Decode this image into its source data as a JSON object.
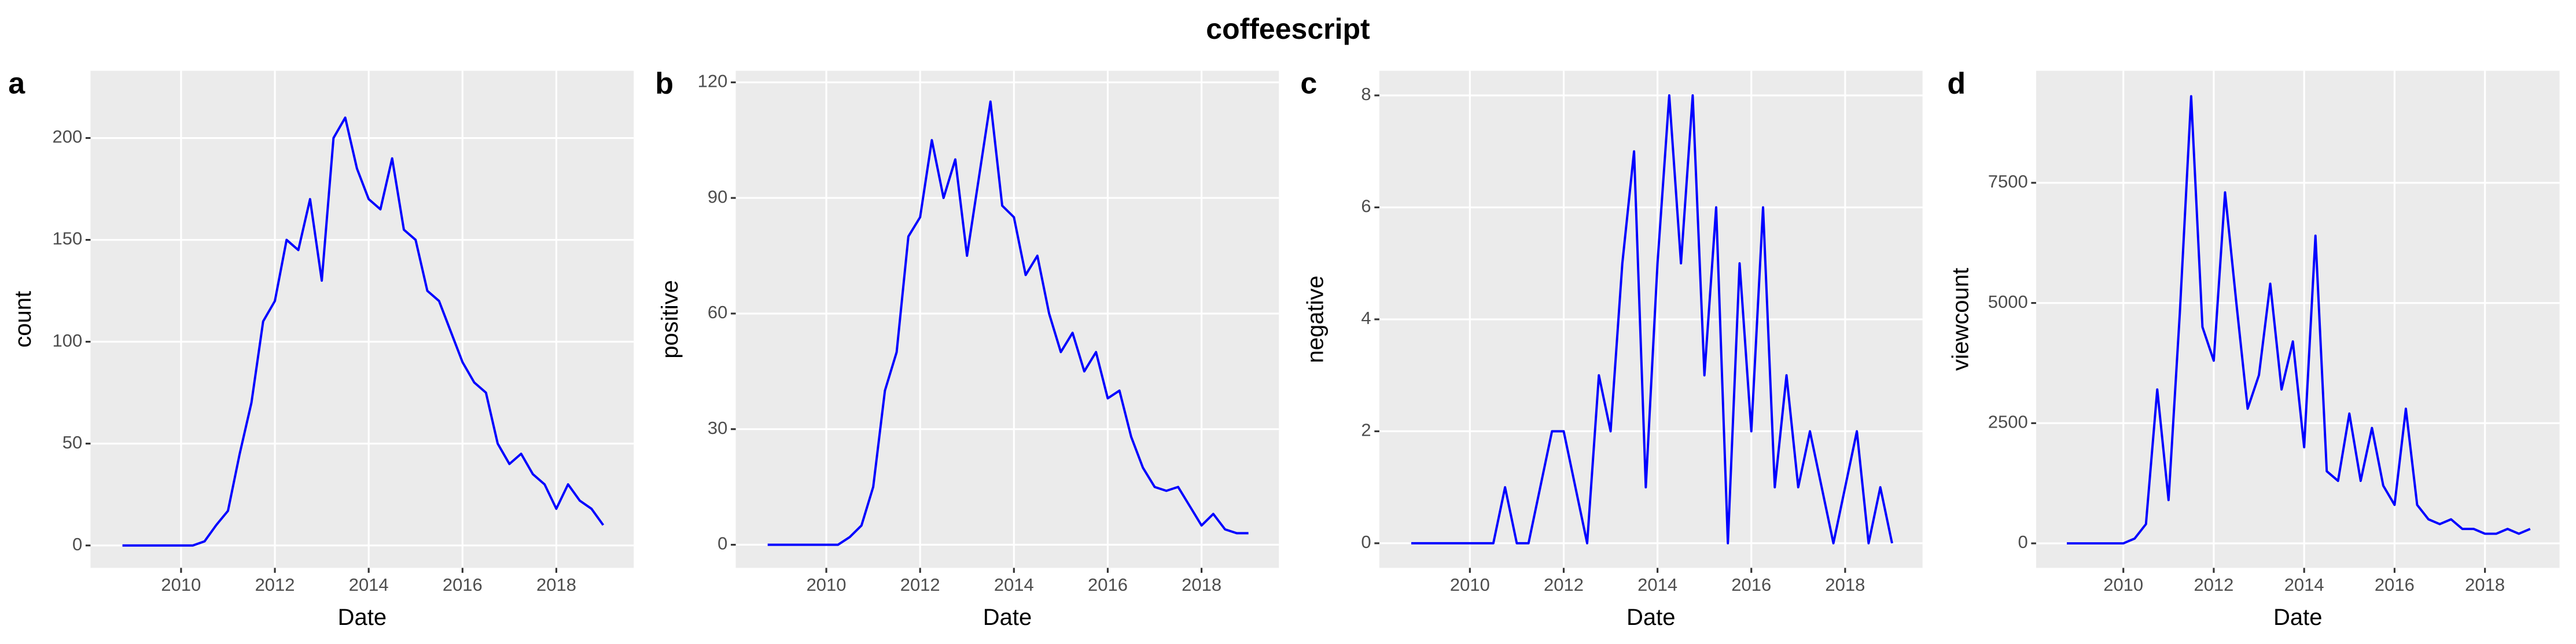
{
  "title": "coffeescript",
  "chart_data": [
    {
      "type": "line",
      "tag": "a",
      "x_label": "Date",
      "y_label": "count",
      "grid": true,
      "x": [
        2008.75,
        2009,
        2009.25,
        2009.5,
        2009.75,
        2010,
        2010.25,
        2010.5,
        2010.75,
        2011,
        2011.25,
        2011.5,
        2011.75,
        2012,
        2012.25,
        2012.5,
        2012.75,
        2013,
        2013.25,
        2013.5,
        2013.75,
        2014,
        2014.25,
        2014.5,
        2014.75,
        2015,
        2015.25,
        2015.5,
        2015.75,
        2016,
        2016.25,
        2016.5,
        2016.75,
        2017,
        2017.25,
        2017.5,
        2017.75,
        2018,
        2018.25,
        2018.5,
        2018.75,
        2019
      ],
      "series": [
        {
          "color": "#0000ff",
          "values": [
            0,
            0,
            0,
            0,
            0,
            0,
            0,
            2,
            10,
            17,
            45,
            70,
            110,
            120,
            150,
            145,
            170,
            130,
            200,
            210,
            185,
            170,
            165,
            190,
            155,
            150,
            125,
            120,
            105,
            90,
            80,
            75,
            50,
            40,
            45,
            35,
            30,
            18,
            30,
            22,
            18,
            10
          ]
        }
      ],
      "xlim": [
        2008.07,
        2019.65
      ],
      "xticks": [
        2010,
        2012,
        2014,
        2016,
        2018
      ],
      "ylim": [
        -11,
        233
      ],
      "yticks": [
        0,
        50,
        100,
        150,
        200
      ]
    },
    {
      "type": "line",
      "tag": "b",
      "x_label": "Date",
      "y_label": "positive",
      "grid": true,
      "x": [
        2008.75,
        2009,
        2009.25,
        2009.5,
        2009.75,
        2010,
        2010.25,
        2010.5,
        2010.75,
        2011,
        2011.25,
        2011.5,
        2011.75,
        2012,
        2012.25,
        2012.5,
        2012.75,
        2013,
        2013.25,
        2013.5,
        2013.75,
        2014,
        2014.25,
        2014.5,
        2014.75,
        2015,
        2015.25,
        2015.5,
        2015.75,
        2016,
        2016.25,
        2016.5,
        2016.75,
        2017,
        2017.25,
        2017.5,
        2017.75,
        2018,
        2018.25,
        2018.5,
        2018.75,
        2019
      ],
      "series": [
        {
          "color": "#0000ff",
          "values": [
            0,
            0,
            0,
            0,
            0,
            0,
            0,
            2,
            5,
            15,
            40,
            50,
            80,
            85,
            105,
            90,
            100,
            75,
            95,
            115,
            88,
            85,
            70,
            75,
            60,
            50,
            55,
            45,
            50,
            38,
            40,
            28,
            20,
            15,
            14,
            15,
            10,
            5,
            8,
            4,
            3,
            3
          ]
        }
      ],
      "xlim": [
        2008.07,
        2019.65
      ],
      "xticks": [
        2010,
        2012,
        2014,
        2016,
        2018
      ],
      "ylim": [
        -6,
        123
      ],
      "yticks": [
        0,
        30,
        60,
        90,
        120
      ]
    },
    {
      "type": "line",
      "tag": "c",
      "x_label": "Date",
      "y_label": "negative",
      "grid": true,
      "x": [
        2008.75,
        2009,
        2009.25,
        2009.5,
        2009.75,
        2010,
        2010.25,
        2010.5,
        2010.75,
        2011,
        2011.25,
        2011.5,
        2011.75,
        2012,
        2012.25,
        2012.5,
        2012.75,
        2013,
        2013.25,
        2013.5,
        2013.75,
        2014,
        2014.25,
        2014.5,
        2014.75,
        2015,
        2015.25,
        2015.5,
        2015.75,
        2016,
        2016.25,
        2016.5,
        2016.75,
        2017,
        2017.25,
        2017.5,
        2017.75,
        2018,
        2018.25,
        2018.5,
        2018.75,
        2019
      ],
      "series": [
        {
          "color": "#0000ff",
          "values": [
            0,
            0,
            0,
            0,
            0,
            0,
            0,
            0,
            1,
            0,
            0,
            1,
            2,
            2,
            1,
            0,
            3,
            2,
            5,
            7,
            1,
            5,
            8,
            5,
            8,
            3,
            6,
            0,
            5,
            2,
            6,
            1,
            3,
            1,
            2,
            1,
            0,
            1,
            2,
            0,
            1,
            0
          ]
        }
      ],
      "xlim": [
        2008.07,
        2019.65
      ],
      "xticks": [
        2010,
        2012,
        2014,
        2016,
        2018
      ],
      "ylim": [
        -0.44,
        8.44
      ],
      "yticks": [
        0,
        2,
        4,
        6,
        8
      ]
    },
    {
      "type": "line",
      "tag": "d",
      "x_label": "Date",
      "y_label": "viewcount",
      "grid": true,
      "x": [
        2008.75,
        2009,
        2009.25,
        2009.5,
        2009.75,
        2010,
        2010.25,
        2010.5,
        2010.75,
        2011,
        2011.25,
        2011.5,
        2011.75,
        2012,
        2012.25,
        2012.5,
        2012.75,
        2013,
        2013.25,
        2013.5,
        2013.75,
        2014,
        2014.25,
        2014.5,
        2014.75,
        2015,
        2015.25,
        2015.5,
        2015.75,
        2016,
        2016.25,
        2016.5,
        2016.75,
        2017,
        2017.25,
        2017.5,
        2017.75,
        2018,
        2018.25,
        2018.5,
        2018.75,
        2019
      ],
      "series": [
        {
          "color": "#0000ff",
          "values": [
            0,
            0,
            0,
            0,
            0,
            0,
            100,
            400,
            3200,
            900,
            4800,
            9300,
            4500,
            3800,
            7300,
            5000,
            2800,
            3500,
            5400,
            3200,
            4200,
            2000,
            6400,
            1500,
            1300,
            2700,
            1300,
            2400,
            1200,
            800,
            2800,
            800,
            500,
            400,
            500,
            300,
            300,
            200,
            200,
            300,
            200,
            300
          ]
        }
      ],
      "xlim": [
        2008.07,
        2019.65
      ],
      "xticks": [
        2010,
        2012,
        2014,
        2016,
        2018
      ],
      "ylim": [
        -510,
        9830
      ],
      "yticks": [
        0,
        2500,
        5000,
        7500
      ]
    }
  ]
}
